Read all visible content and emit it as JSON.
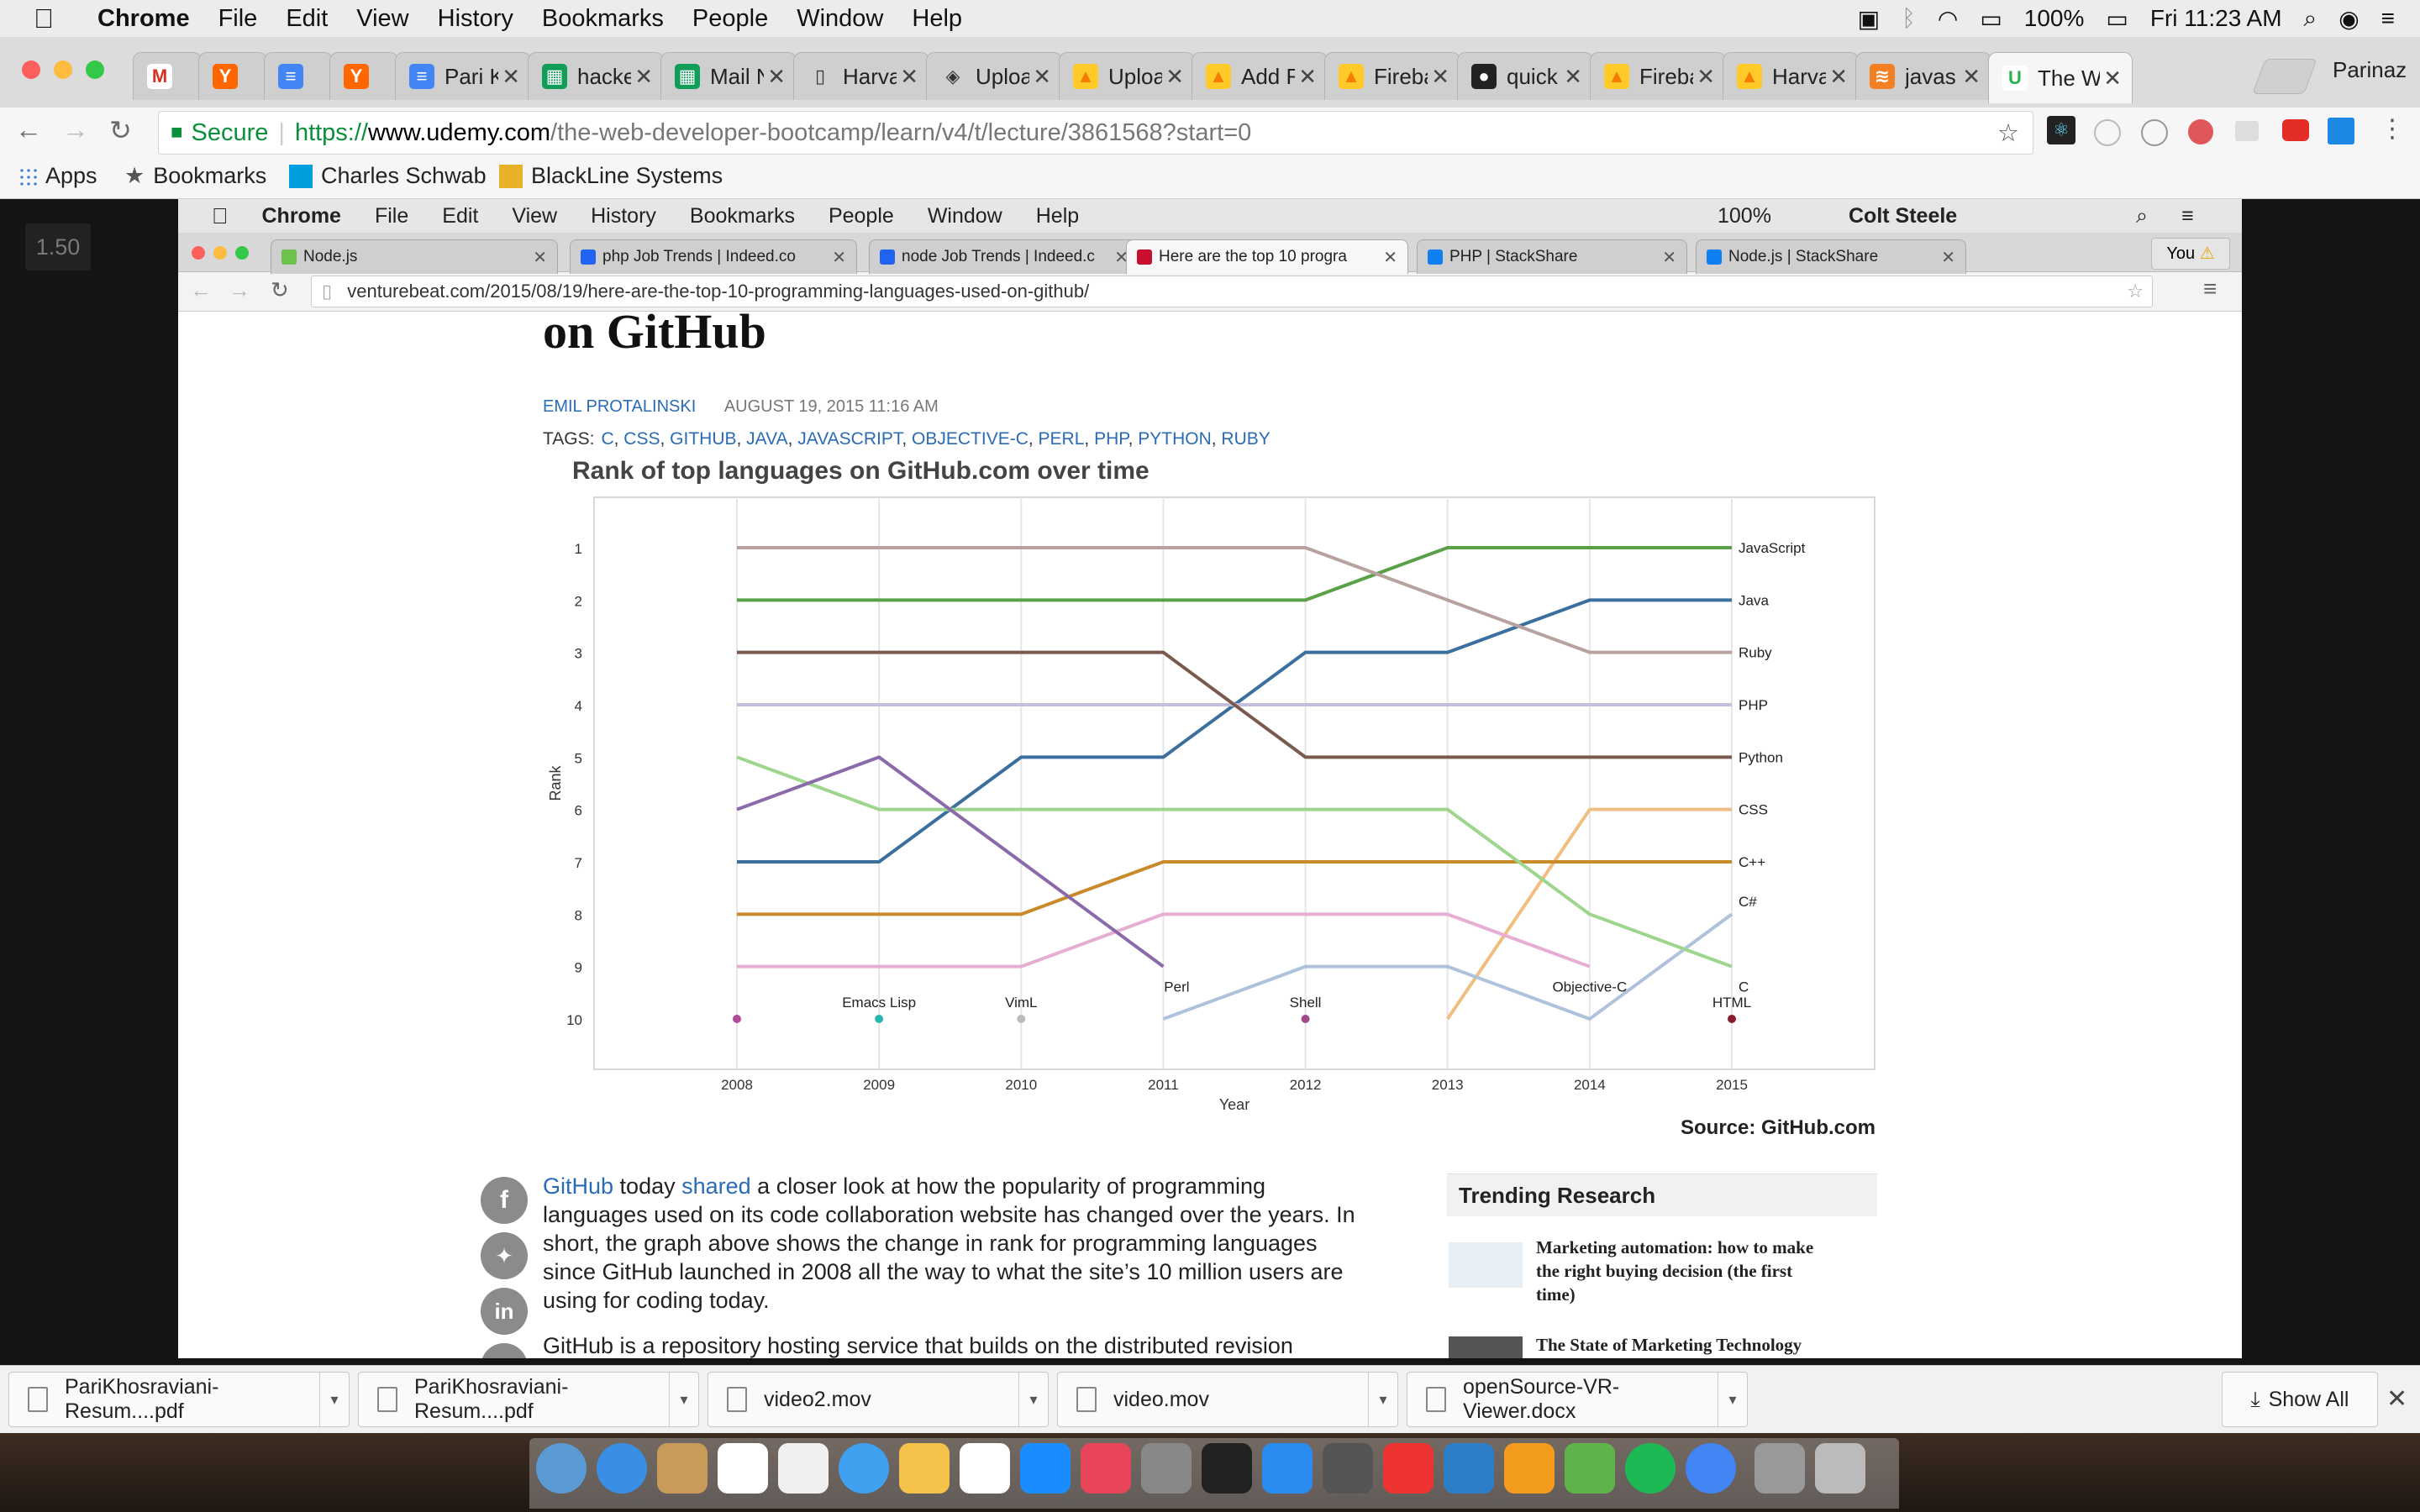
{
  "menubar": {
    "app": "Chrome",
    "items": [
      "File",
      "Edit",
      "View",
      "History",
      "Bookmarks",
      "People",
      "Window",
      "Help"
    ],
    "battery": "100%",
    "clock": "Fri 11:23 AM"
  },
  "outer_tabs": [
    {
      "label": "",
      "fav": "M",
      "color": "#ffffff",
      "fcolor": "#d93025"
    },
    {
      "label": "",
      "fav": "Y",
      "color": "#ff6600",
      "fcolor": "#ffffff"
    },
    {
      "label": "",
      "fav": "≡",
      "color": "#4285f4",
      "fcolor": "#ffffff"
    },
    {
      "label": "",
      "fav": "Y",
      "color": "#ff6600",
      "fcolor": "#ffffff"
    },
    {
      "label": "Pari K",
      "fav": "≡",
      "color": "#4285f4",
      "fcolor": "#ffffff"
    },
    {
      "label": "hacke",
      "fav": "▦",
      "color": "#0f9d58",
      "fcolor": "#ffffff"
    },
    {
      "label": "Mail N",
      "fav": "▦",
      "color": "#0f9d58",
      "fcolor": "#ffffff"
    },
    {
      "label": "Harva",
      "fav": "▯",
      "color": "#cfcfcf",
      "fcolor": "#333333"
    },
    {
      "label": "Uploa",
      "fav": "◈",
      "color": "#cfcfcf",
      "fcolor": "#333333"
    },
    {
      "label": "Uploa",
      "fav": "▲",
      "color": "#ffca28",
      "fcolor": "#f57c00"
    },
    {
      "label": "Add F",
      "fav": "▲",
      "color": "#ffca28",
      "fcolor": "#f57c00"
    },
    {
      "label": "Fireba",
      "fav": "▲",
      "color": "#ffca28",
      "fcolor": "#f57c00"
    },
    {
      "label": "quick",
      "fav": "●",
      "color": "#222222",
      "fcolor": "#ffffff"
    },
    {
      "label": "Fireba",
      "fav": "▲",
      "color": "#ffca28",
      "fcolor": "#f57c00"
    },
    {
      "label": "Harva",
      "fav": "▲",
      "color": "#ffca28",
      "fcolor": "#f57c00"
    },
    {
      "label": "javas",
      "fav": "≋",
      "color": "#f48024",
      "fcolor": "#ffffff"
    },
    {
      "label": "The W",
      "fav": "U",
      "color": "#ffffff",
      "fcolor": "#2bb24c"
    }
  ],
  "profile": "Parinaz",
  "address": {
    "secure": "Secure",
    "scheme": "https://",
    "host": "www.udemy.com",
    "path": "/the-web-developer-bootcamp/learn/v4/t/lecture/3861568?start=0"
  },
  "bookmarks": {
    "apps": "Apps",
    "bookmarks": "Bookmarks",
    "schwab": "Charles Schwab",
    "blackline": "BlackLine Systems"
  },
  "player": {
    "speed": "1.50"
  },
  "inner": {
    "menubar": {
      "app": "Chrome",
      "items": [
        "File",
        "Edit",
        "View",
        "History",
        "Bookmarks",
        "People",
        "Window",
        "Help"
      ],
      "battery": "100%",
      "user": "Colt Steele"
    },
    "tabs": [
      "Node.js",
      "php Job Trends | Indeed.co",
      "node Job Trends | Indeed.c",
      "Here are the top 10 progra",
      "PHP | StackShare",
      "Node.js | StackShare"
    ],
    "you_button": "You",
    "url": "venturebeat.com/2015/08/19/here-are-the-top-10-programming-languages-used-on-github/"
  },
  "article": {
    "title_fragment": "on GitHub",
    "author": "EMIL PROTALINSKI",
    "date": "AUGUST 19, 2015 11:16 AM",
    "tags_label": "TAGS:",
    "tags": [
      "C",
      "CSS",
      "GITHUB",
      "JAVA",
      "JAVASCRIPT",
      "OBJECTIVE-C",
      "PERL",
      "PHP",
      "PYTHON",
      "RUBY"
    ],
    "source": "Source: GitHub.com",
    "body": {
      "l1a": "GitHub",
      "l1b": " today ",
      "l1c": "shared",
      "l1d": " a closer look at how the popularity of programming",
      "l2": "languages used on its code collaboration website has changed over the years. In",
      "l3": "short, the graph above shows the change in rank for programming languages",
      "l4": "since GitHub launched in 2008 all the way to what the site’s 10 million users are",
      "l5": "using for coding today.",
      "l6": "GitHub is a repository hosting service that builds on the distributed revision"
    },
    "trending": {
      "title": "Trending Research",
      "item1": "Marketing automation: how to make the right buying decision (the first time)",
      "item2": "The State of Marketing Technology"
    }
  },
  "chart_data": {
    "type": "line",
    "title": "Rank of top languages on GitHub.com over time",
    "xlabel": "Year",
    "ylabel": "Rank",
    "x": [
      2008,
      2009,
      2010,
      2011,
      2012,
      2013,
      2014,
      2015
    ],
    "ylim": [
      10,
      1
    ],
    "y_ticks": [
      1,
      2,
      3,
      4,
      5,
      6,
      7,
      8,
      9,
      10
    ],
    "series": [
      {
        "name": "JavaScript",
        "color": "#5aa048",
        "values": [
          2,
          2,
          2,
          2,
          2,
          1,
          1,
          1
        ]
      },
      {
        "name": "Java",
        "color": "#3a6f9e",
        "values": [
          7,
          7,
          5,
          5,
          3,
          3,
          2,
          2
        ]
      },
      {
        "name": "Ruby",
        "color": "#b8a2a0",
        "values": [
          1,
          1,
          1,
          1,
          1,
          2,
          3,
          3
        ]
      },
      {
        "name": "PHP",
        "color": "#c6bedc",
        "values": [
          4,
          4,
          4,
          4,
          4,
          4,
          4,
          4
        ]
      },
      {
        "name": "Python",
        "color": "#7a5a4f",
        "values": [
          3,
          3,
          3,
          3,
          5,
          5,
          5,
          5
        ]
      },
      {
        "name": "CSS",
        "color": "#f0be80",
        "values": [
          null,
          null,
          null,
          null,
          null,
          10,
          6,
          6
        ]
      },
      {
        "name": "C++",
        "color": "#c98a2a",
        "values": [
          8,
          8,
          8,
          7,
          7,
          7,
          7,
          7
        ]
      },
      {
        "name": "C#",
        "color": "#aec2dc",
        "values": [
          null,
          null,
          null,
          10,
          9,
          9,
          10,
          8
        ]
      },
      {
        "name": "Objective-C",
        "color": "#e6aed2",
        "values": [
          9,
          9,
          9,
          8,
          8,
          8,
          9,
          null
        ]
      },
      {
        "name": "C",
        "color": "#9ed68e",
        "values": [
          5,
          6,
          6,
          6,
          6,
          6,
          8,
          9
        ]
      },
      {
        "name": "Perl",
        "color": "#8a6aaa",
        "values": [
          6,
          5,
          7,
          9,
          null,
          null,
          null,
          null
        ]
      }
    ],
    "point_labels": [
      {
        "text": "Emacs Lisp",
        "x": 2009,
        "y": 10,
        "color": "#2ab5b0"
      },
      {
        "text": "VimL",
        "x": 2010,
        "y": 10,
        "color": "#bbbbbb"
      },
      {
        "text": "Shell",
        "x": 2012,
        "y": 10,
        "color": "#a04a8a"
      },
      {
        "text": "HTML",
        "x": 2015,
        "y": 10,
        "color": "#8a1e2a"
      },
      {
        "text": "",
        "x": 2008,
        "y": 10,
        "color": "#b04a9a"
      }
    ],
    "end_labels": [
      "JavaScript",
      "Java",
      "Ruby",
      "PHP",
      "Python",
      "CSS",
      "C++",
      "C#",
      "Objective-C",
      "C",
      "Perl"
    ]
  },
  "downloads": [
    "PariKhosraviani-Resum....pdf",
    "PariKhosraviani-Resum....pdf",
    "video2.mov",
    "video.mov",
    "openSource-VR-Viewer.docx"
  ],
  "show_all": "Show All"
}
